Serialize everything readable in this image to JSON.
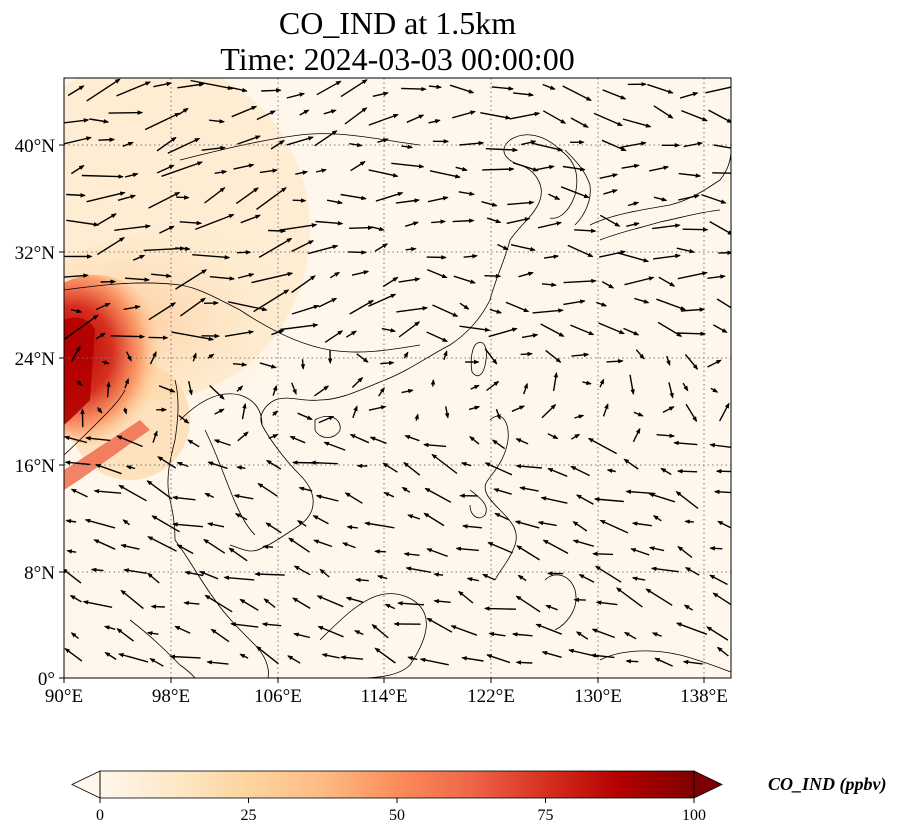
{
  "title": {
    "line1": "CO_IND at 1.5km",
    "line2": "Time: 2024-03-03 00:00:00"
  },
  "map": {
    "lon_range": [
      90,
      140
    ],
    "lat_range": [
      0,
      45
    ],
    "x_ticks": [
      "90°E",
      "98°E",
      "106°E",
      "114°E",
      "122°E",
      "130°E",
      "138°E"
    ],
    "y_ticks": [
      "0°",
      "8°N",
      "16°N",
      "24°N",
      "32°N",
      "40°N"
    ],
    "gridlines": "dotted",
    "field_colormap": "OrRd",
    "land_outline_color": "#000000"
  },
  "colorbar": {
    "label": "CO_IND (ppbv)",
    "ticks": [
      "0",
      "25",
      "50",
      "75",
      "100"
    ],
    "range": [
      0,
      100
    ],
    "extend": "both",
    "colors": [
      "#fff7ec",
      "#fee8c8",
      "#fdd49e",
      "#fdbb84",
      "#fc8d59",
      "#ef6548",
      "#d7301f",
      "#b30000",
      "#7f0000"
    ]
  }
}
